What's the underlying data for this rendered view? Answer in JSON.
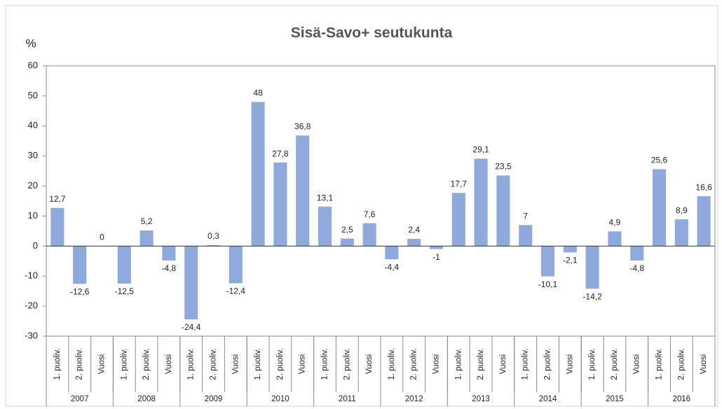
{
  "chart_data": {
    "type": "bar",
    "title": "Sisä-Savo+ seutukunta",
    "y_label": "%",
    "categories": [
      "1. puoliv.",
      "2. puoliv.",
      "Vuosi",
      "1. puoliv.",
      "2. puoliv.",
      "Vuosi",
      "1. puoliv.",
      "2. puoliv.",
      "Vuosi",
      "1. puoliv.",
      "2. puoliv.",
      "Vuosi",
      "1. puoliv.",
      "2. puoliv.",
      "Vuosi",
      "1. puoliv.",
      "2. puoliv.",
      "Vuosi",
      "1. puoliv.",
      "2. puoliv.",
      "Vuosi",
      "1. puoliv.",
      "2. puoliv.",
      "Vuosi",
      "1. puoliv.",
      "2. puoliv.",
      "Vuosi",
      "1. puoliv.",
      "2. puoliv.",
      "Vuosi"
    ],
    "groups": [
      "2007",
      "2008",
      "2009",
      "2010",
      "2011",
      "2012",
      "2013",
      "2014",
      "2015",
      "2016"
    ],
    "values": [
      12.7,
      -12.6,
      0,
      -12.5,
      5.2,
      -4.8,
      -24.4,
      0.3,
      -12.4,
      48,
      27.8,
      36.8,
      13.1,
      2.5,
      7.6,
      -4.4,
      2.4,
      -1,
      17.7,
      29.1,
      23.5,
      7,
      -10.1,
      -2.1,
      -14.2,
      4.9,
      -4.8,
      25.6,
      8.9,
      16.6
    ],
    "value_labels": [
      "12,7",
      "-12,6",
      "0",
      "-12,5",
      "5,2",
      "-4,8",
      "-24,4",
      "0,3",
      "-12,4",
      "48",
      "27,8",
      "36,8",
      "13,1",
      "2,5",
      "7,6",
      "-4,4",
      "2,4",
      "-1",
      "17,7",
      "29,1",
      "23,5",
      "7",
      "-10,1",
      "-2,1",
      "-14,2",
      "4,9",
      "-4,8",
      "25,6",
      "8,9",
      "16,6"
    ],
    "color": "#8eaadc",
    "ylim": [
      -30,
      60
    ],
    "yticks": [
      -30,
      -20,
      -10,
      0,
      10,
      20,
      30,
      40,
      50,
      60
    ],
    "grid": false
  }
}
